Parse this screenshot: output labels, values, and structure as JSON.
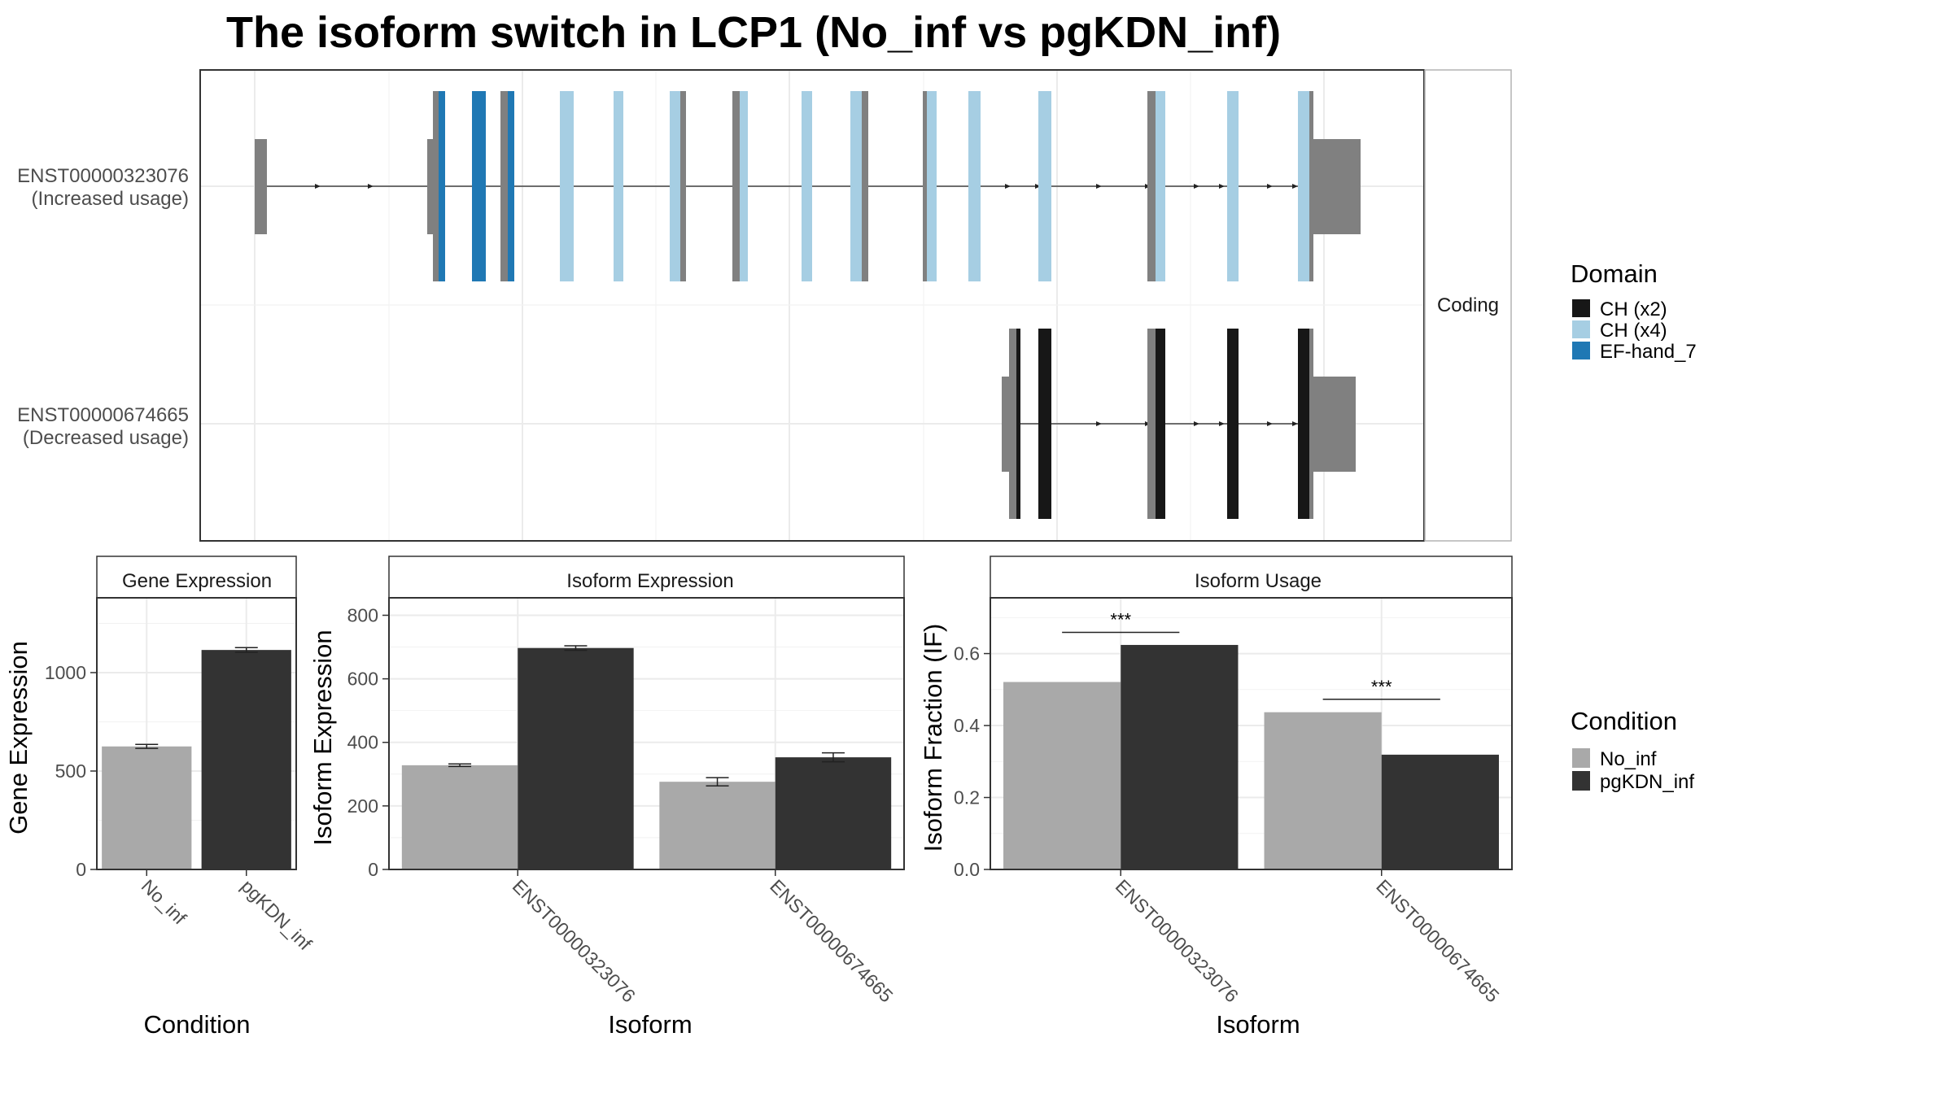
{
  "title": "The isoform switch in LCP1 (No_inf vs pgKDN_inf)",
  "colors": {
    "CH (x2)": "#171717",
    "CH (x4)": "#a6cee3",
    "EF-hand_7": "#1f78b4",
    "noncoding": "#808080",
    "No_inf": "#a9a9a9",
    "pgKDN_inf": "#333333"
  },
  "structure_panel": {
    "strip_label": "Coding",
    "transcripts": [
      {
        "id": "ENST00000323076",
        "label": "(Increased usage)"
      },
      {
        "id": "ENST00000674665",
        "label": "(Decreased usage)"
      }
    ]
  },
  "legends": {
    "domain": {
      "title": "Domain",
      "entries": [
        "CH (x2)",
        "CH (x4)",
        "EF-hand_7"
      ]
    },
    "condition": {
      "title": "Condition",
      "entries": [
        "No_inf",
        "pgKDN_inf"
      ]
    }
  },
  "chart_data": [
    {
      "type": "bar",
      "strip": "Gene Expression",
      "xlabel": "Condition",
      "ylabel": "Gene Expression",
      "categories": [
        "No_inf",
        "pgKDN_inf"
      ],
      "values": [
        625,
        1115
      ],
      "errors": [
        10,
        12
      ],
      "ylim": [
        0,
        1380
      ],
      "yticks": [
        0,
        500,
        1000
      ],
      "grid": true
    },
    {
      "type": "bar",
      "strip": "Isoform Expression",
      "xlabel": "Isoform",
      "ylabel": "Isoform Expression",
      "categories": [
        "ENST00000323076",
        "ENST00000674665"
      ],
      "series": [
        {
          "name": "No_inf",
          "values": [
            328,
            276
          ],
          "errors": [
            4,
            13
          ]
        },
        {
          "name": "pgKDN_inf",
          "values": [
            697,
            353
          ],
          "errors": [
            7,
            14
          ]
        }
      ],
      "ylim": [
        0,
        855
      ],
      "yticks": [
        0,
        200,
        400,
        600,
        800
      ],
      "grid": true
    },
    {
      "type": "bar",
      "strip": "Isoform Usage",
      "xlabel": "Isoform",
      "ylabel": "Isoform Fraction (IF)",
      "categories": [
        "ENST00000323076",
        "ENST00000674665"
      ],
      "series": [
        {
          "name": "No_inf",
          "values": [
            0.521,
            0.437
          ]
        },
        {
          "name": "pgKDN_inf",
          "values": [
            0.624,
            0.319
          ]
        }
      ],
      "significance": [
        {
          "category": "ENST00000323076",
          "label": "***",
          "y": 0.659
        },
        {
          "category": "ENST00000674665",
          "label": "***",
          "y": 0.473
        }
      ],
      "ylim": [
        0,
        0.755
      ],
      "yticks": [
        0.0,
        0.2,
        0.4,
        0.6
      ],
      "grid": true
    }
  ]
}
